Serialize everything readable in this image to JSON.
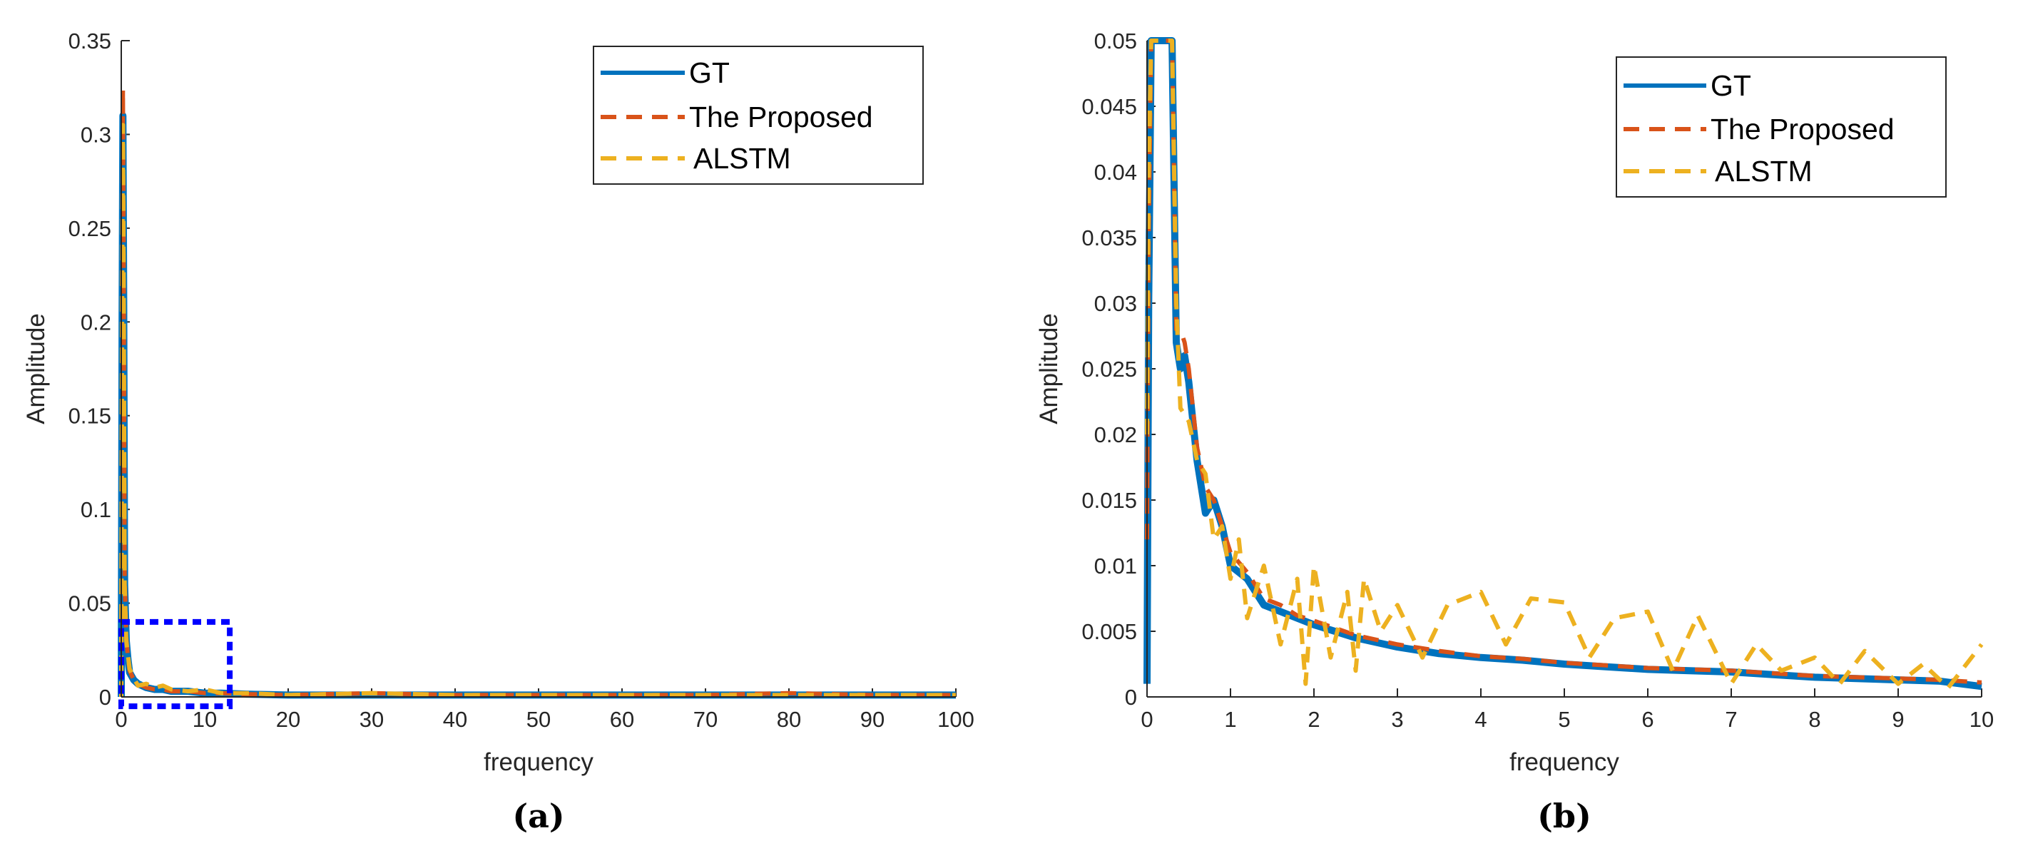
{
  "chart_data": [
    {
      "type": "line",
      "panel_label": "(a)",
      "xlabel": "frequency",
      "ylabel": "Amplitude",
      "xlim": [
        0,
        100
      ],
      "ylim": [
        0,
        0.35
      ],
      "xticks": [
        0,
        10,
        20,
        30,
        40,
        50,
        60,
        70,
        80,
        90,
        100
      ],
      "yticks": [
        0,
        0.05,
        0.1,
        0.15,
        0.2,
        0.25,
        0.3,
        0.35
      ],
      "xtick_labels": [
        "0",
        "10",
        "20",
        "30",
        "40",
        "50",
        "60",
        "70",
        "80",
        "90",
        "100"
      ],
      "ytick_labels": [
        "0",
        "0.05",
        "0.1",
        "0.15",
        "0.2",
        "0.25",
        "0.3",
        "0.35"
      ],
      "legend_position": "top-right",
      "zoom_box": {
        "x_range": [
          0,
          13
        ],
        "y_range": [
          -0.005,
          0.04
        ],
        "color": "#0000ff"
      },
      "series": [
        {
          "name": "GT",
          "color": "#0072BD",
          "style": "solid",
          "x": [
            0,
            0.1,
            0.2,
            0.3,
            0.4,
            0.6,
            0.8,
            1,
            1.5,
            2,
            3,
            4,
            5,
            6,
            8,
            10,
            12,
            15,
            20,
            30,
            40,
            50,
            60,
            70,
            80,
            90,
            100
          ],
          "y": [
            0.0,
            0.2,
            0.31,
            0.2,
            0.06,
            0.03,
            0.02,
            0.013,
            0.009,
            0.007,
            0.005,
            0.004,
            0.004,
            0.003,
            0.003,
            0.002,
            0.002,
            0.0015,
            0.001,
            0.001,
            0.001,
            0.001,
            0.001,
            0.001,
            0.001,
            0.001,
            0.001
          ]
        },
        {
          "name": "The Proposed",
          "color": "#D95319",
          "style": "dashed",
          "x": [
            0,
            0.1,
            0.2,
            0.3,
            0.4,
            0.6,
            0.8,
            1,
            1.5,
            2,
            3,
            4,
            5,
            6,
            8,
            10,
            12,
            15,
            20,
            30,
            40,
            50,
            60,
            70,
            80,
            90,
            100
          ],
          "y": [
            0.0,
            0.22,
            0.324,
            0.21,
            0.065,
            0.032,
            0.021,
            0.014,
            0.009,
            0.007,
            0.005,
            0.004,
            0.004,
            0.003,
            0.003,
            0.002,
            0.002,
            0.0015,
            0.001,
            0.002,
            0.001,
            0.001,
            0.001,
            0.001,
            0.002,
            0.001,
            0.001
          ]
        },
        {
          "name": "ALSTM",
          "color": "#EDB120",
          "style": "dashed",
          "x": [
            0,
            0.1,
            0.2,
            0.3,
            0.4,
            0.6,
            0.8,
            1,
            1.5,
            2,
            3,
            4,
            5,
            6,
            8,
            10,
            12,
            15,
            20,
            30,
            40,
            50,
            60,
            70,
            80,
            90,
            100
          ],
          "y": [
            0.0,
            0.21,
            0.305,
            0.2,
            0.06,
            0.03,
            0.022,
            0.015,
            0.01,
            0.006,
            0.007,
            0.005,
            0.006,
            0.004,
            0.003,
            0.004,
            0.002,
            0.002,
            0.001,
            0.002,
            0.001,
            0.001,
            0.001,
            0.001,
            0.001,
            0.001,
            0.001
          ]
        }
      ]
    },
    {
      "type": "line",
      "panel_label": "(b)",
      "xlabel": "frequency",
      "ylabel": "Amplitude",
      "xlim": [
        0,
        10
      ],
      "ylim": [
        0,
        0.05
      ],
      "xticks": [
        0,
        1,
        2,
        3,
        4,
        5,
        6,
        7,
        8,
        9,
        10
      ],
      "yticks": [
        0,
        0.005,
        0.01,
        0.015,
        0.02,
        0.025,
        0.03,
        0.035,
        0.04,
        0.045,
        0.05
      ],
      "xtick_labels": [
        "0",
        "1",
        "2",
        "3",
        "4",
        "5",
        "6",
        "7",
        "8",
        "9",
        "10"
      ],
      "ytick_labels": [
        "0",
        "0.005",
        "0.01",
        "0.015",
        "0.02",
        "0.025",
        "0.03",
        "0.035",
        "0.04",
        "0.045",
        "0.05"
      ],
      "legend_position": "top-right",
      "series": [
        {
          "name": "GT",
          "color": "#0072BD",
          "style": "solid",
          "x": [
            0,
            0.02,
            0.05,
            0.1,
            0.2,
            0.3,
            0.35,
            0.4,
            0.45,
            0.5,
            0.55,
            0.6,
            0.7,
            0.8,
            0.9,
            1.0,
            1.2,
            1.4,
            1.6,
            1.8,
            2.0,
            2.5,
            3.0,
            3.5,
            4.0,
            4.5,
            5.0,
            5.5,
            6.0,
            6.5,
            7.0,
            7.5,
            8.0,
            8.5,
            9.0,
            9.5,
            10.0
          ],
          "y": [
            0.001,
            0.03,
            0.05,
            0.05,
            0.05,
            0.05,
            0.027,
            0.025,
            0.026,
            0.024,
            0.021,
            0.018,
            0.014,
            0.015,
            0.013,
            0.01,
            0.009,
            0.007,
            0.0065,
            0.006,
            0.0055,
            0.0045,
            0.0038,
            0.0033,
            0.003,
            0.0028,
            0.0025,
            0.0023,
            0.0021,
            0.002,
            0.0019,
            0.0017,
            0.0015,
            0.0014,
            0.0013,
            0.0012,
            0.0008
          ]
        },
        {
          "name": "The Proposed",
          "color": "#D95319",
          "style": "dashed",
          "x": [
            0,
            0.02,
            0.05,
            0.1,
            0.2,
            0.3,
            0.35,
            0.4,
            0.45,
            0.5,
            0.55,
            0.6,
            0.7,
            0.8,
            0.9,
            1.0,
            1.2,
            1.4,
            1.6,
            1.8,
            2.0,
            2.5,
            3.0,
            3.5,
            4.0,
            4.5,
            5.0,
            5.5,
            6.0,
            6.5,
            7.0,
            7.5,
            8.0,
            8.5,
            9.0,
            9.5,
            10.0
          ],
          "y": [
            0.012,
            0.035,
            0.05,
            0.05,
            0.05,
            0.05,
            0.028,
            0.028,
            0.027,
            0.025,
            0.022,
            0.019,
            0.016,
            0.015,
            0.013,
            0.011,
            0.0095,
            0.0075,
            0.007,
            0.0062,
            0.0058,
            0.0047,
            0.004,
            0.0035,
            0.0031,
            0.0029,
            0.0026,
            0.0024,
            0.0022,
            0.0021,
            0.002,
            0.0018,
            0.0016,
            0.0015,
            0.0014,
            0.0013,
            0.0011
          ]
        },
        {
          "name": "ALSTM",
          "color": "#EDB120",
          "style": "dashed",
          "x": [
            0,
            0.02,
            0.05,
            0.1,
            0.2,
            0.3,
            0.35,
            0.4,
            0.5,
            0.6,
            0.7,
            0.8,
            0.9,
            1.0,
            1.1,
            1.2,
            1.4,
            1.6,
            1.8,
            1.9,
            2.0,
            2.2,
            2.4,
            2.5,
            2.6,
            2.8,
            3.0,
            3.3,
            3.6,
            4.0,
            4.3,
            4.6,
            5.0,
            5.3,
            5.6,
            6.0,
            6.3,
            6.6,
            7.0,
            7.3,
            7.6,
            8.0,
            8.3,
            8.6,
            9.0,
            9.3,
            9.6,
            10.0
          ],
          "y": [
            0.02,
            0.04,
            0.05,
            0.05,
            0.05,
            0.05,
            0.03,
            0.022,
            0.021,
            0.018,
            0.017,
            0.012,
            0.013,
            0.009,
            0.012,
            0.006,
            0.01,
            0.004,
            0.009,
            0.001,
            0.01,
            0.003,
            0.008,
            0.002,
            0.009,
            0.005,
            0.007,
            0.003,
            0.007,
            0.008,
            0.004,
            0.0075,
            0.0072,
            0.003,
            0.006,
            0.0065,
            0.002,
            0.0062,
            0.001,
            0.004,
            0.002,
            0.003,
            0.001,
            0.0035,
            0.001,
            0.0025,
            0.0007,
            0.004
          ]
        }
      ]
    }
  ]
}
